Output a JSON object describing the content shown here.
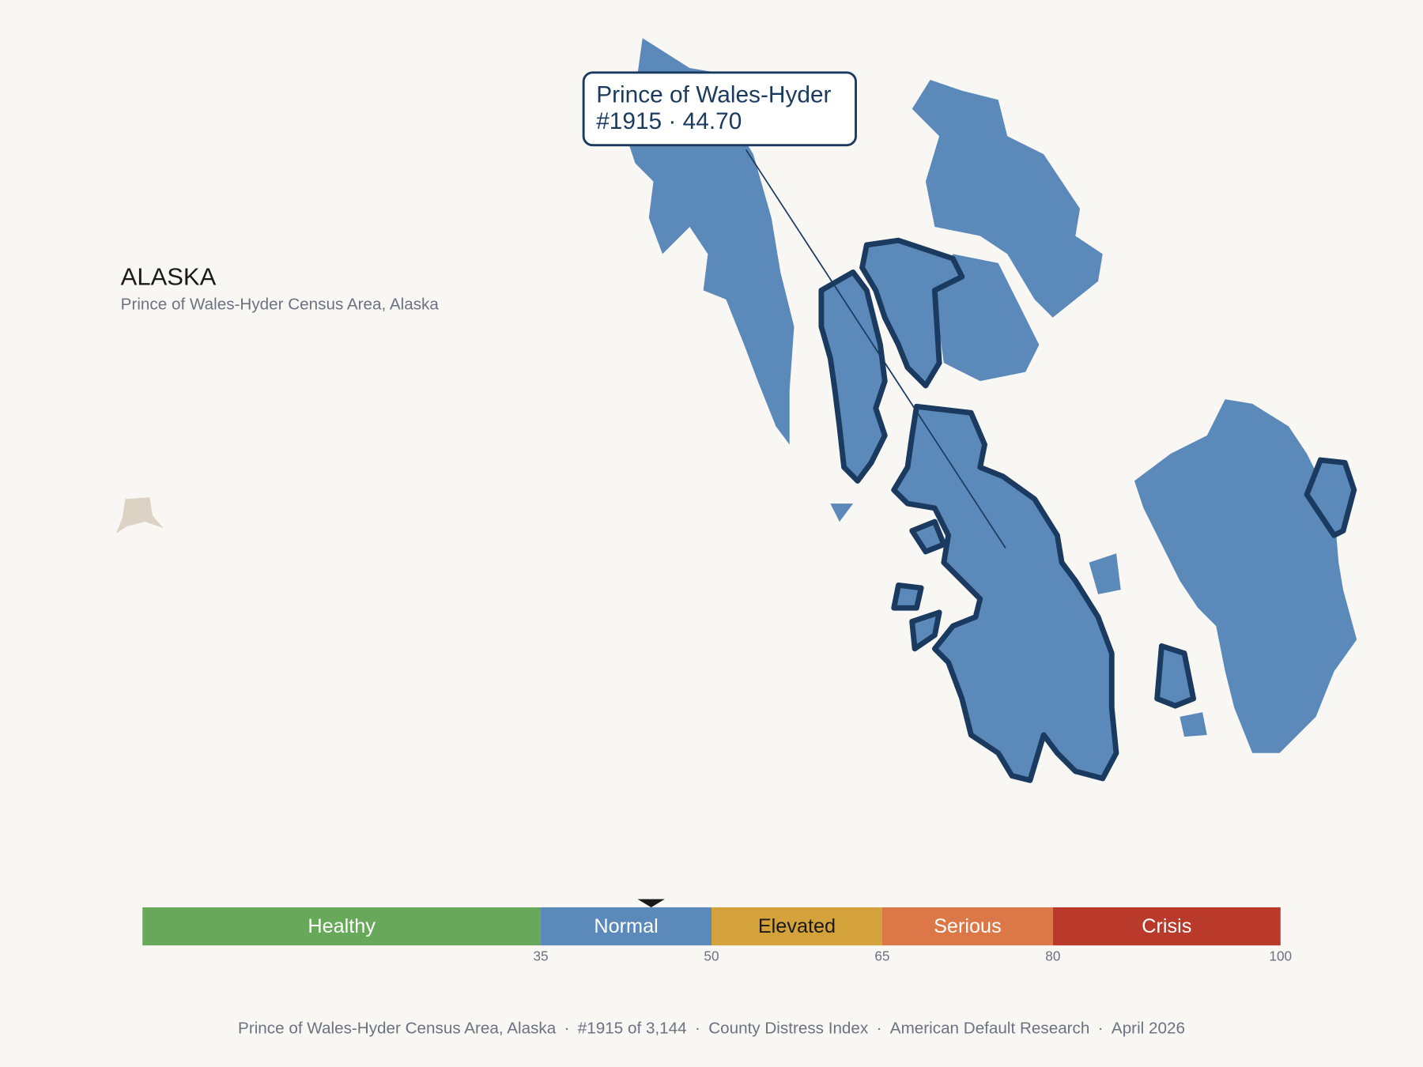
{
  "header": {
    "title": "ALASKA",
    "subtitle": "Prince of Wales-Hyder Census Area, Alaska"
  },
  "tooltip": {
    "name": "Prince of Wales-Hyder",
    "detail": "#1915 · 44.70"
  },
  "legend": {
    "range": [
      0,
      100
    ],
    "bands": [
      {
        "label": "Healthy",
        "from": 0,
        "to": 35,
        "color": "#67a85a",
        "text_color": "#ffffff"
      },
      {
        "label": "Normal",
        "from": 35,
        "to": 50,
        "color": "#5b8aba",
        "text_color": "#ffffff"
      },
      {
        "label": "Elevated",
        "from": 50,
        "to": 65,
        "color": "#d4a23a",
        "text_color": "#1a1a1a"
      },
      {
        "label": "Serious",
        "from": 65,
        "to": 80,
        "color": "#dc7848",
        "text_color": "#ffffff"
      },
      {
        "label": "Crisis",
        "from": 80,
        "to": 100,
        "color": "#b93a2a",
        "text_color": "#ffffff"
      }
    ],
    "ticks": [
      35,
      50,
      65,
      80,
      100
    ],
    "marker": {
      "value": 44.7
    }
  },
  "footer": {
    "separator": "·",
    "items": [
      "Prince of Wales-Hyder Census Area, Alaska",
      "#1915 of 3,144",
      "County Distress Index",
      "American Default Research",
      "April 2026"
    ]
  }
}
